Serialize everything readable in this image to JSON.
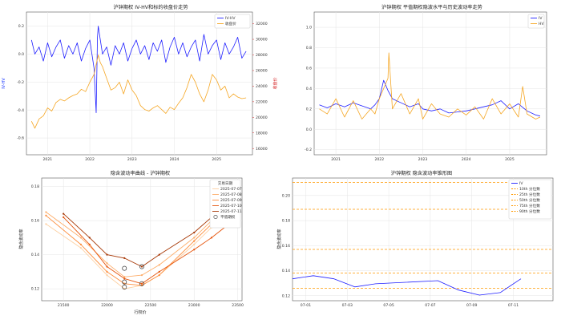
{
  "chart_data": [
    {
      "id": "p1",
      "type": "line",
      "title": "沪锌期权 IV-HV和标的收盘价走势",
      "ylabel": "IV-HV",
      "y2label": "收盘价",
      "ylabel_color": "#1f3cff",
      "y2label_color": "#d62728",
      "xlim": [
        2020.5,
        2025.85
      ],
      "ylim": [
        -0.72,
        0.3
      ],
      "y2lim": [
        15200,
        33500
      ],
      "xticks": [
        2021,
        2022,
        2023,
        2024,
        2025
      ],
      "xtick_labels": [
        "2021",
        "2022",
        "2023",
        "2024",
        "2025"
      ],
      "yticks": [
        -0.6,
        -0.4,
        -0.2,
        0.0,
        0.2
      ],
      "ytick_labels": [
        "-0.6",
        "-0.4",
        "-0.2",
        "0.0",
        "0.2"
      ],
      "y2ticks": [
        16000,
        18000,
        20000,
        22000,
        24000,
        26000,
        28000,
        30000,
        32000
      ],
      "y2tick_labels": [
        "16000",
        "18000",
        "20000",
        "22000",
        "24000",
        "26000",
        "28000",
        "30000",
        "32000"
      ],
      "grid": true,
      "legend": "top-right",
      "series": [
        {
          "name": "IV-HV",
          "axis": "left",
          "color": "#1f1fff",
          "x": [
            2020.62,
            2020.7,
            2020.8,
            2020.9,
            2021.0,
            2021.1,
            2021.2,
            2021.3,
            2021.4,
            2021.5,
            2021.6,
            2021.7,
            2021.8,
            2021.9,
            2022.0,
            2022.1,
            2022.15,
            2022.18,
            2022.2,
            2022.25,
            2022.3,
            2022.4,
            2022.5,
            2022.6,
            2022.7,
            2022.8,
            2022.9,
            2023.0,
            2023.1,
            2023.2,
            2023.3,
            2023.4,
            2023.5,
            2023.6,
            2023.7,
            2023.8,
            2023.9,
            2024.0,
            2024.1,
            2024.2,
            2024.3,
            2024.4,
            2024.5,
            2024.6,
            2024.7,
            2024.8,
            2024.9,
            2025.0,
            2025.1,
            2025.2,
            2025.3,
            2025.4,
            2025.5,
            2025.6,
            2025.7
          ],
          "y": [
            0.1,
            0.0,
            0.05,
            -0.05,
            0.08,
            -0.02,
            0.05,
            0.1,
            -0.03,
            0.06,
            0.0,
            0.08,
            -0.05,
            0.04,
            0.1,
            -0.1,
            -0.42,
            0.12,
            0.2,
            0.1,
            0.0,
            0.05,
            -0.08,
            0.06,
            0.0,
            0.08,
            -0.05,
            0.04,
            0.1,
            0.0,
            0.06,
            -0.04,
            0.08,
            0.02,
            0.1,
            -0.06,
            0.05,
            0.12,
            0.0,
            0.08,
            -0.02,
            0.05,
            0.1,
            -0.05,
            0.14,
            0.0,
            0.06,
            0.1,
            -0.04,
            0.08,
            0.0,
            0.05,
            0.12,
            -0.03,
            0.02
          ]
        },
        {
          "name": "收盘价",
          "axis": "right",
          "color": "#f5a623",
          "x": [
            2020.62,
            2020.7,
            2020.8,
            2020.9,
            2021.0,
            2021.1,
            2021.2,
            2021.3,
            2021.4,
            2021.5,
            2021.6,
            2021.7,
            2021.8,
            2021.9,
            2022.0,
            2022.1,
            2022.2,
            2022.25,
            2022.3,
            2022.4,
            2022.5,
            2022.6,
            2022.7,
            2022.8,
            2022.9,
            2023.0,
            2023.1,
            2023.2,
            2023.3,
            2023.4,
            2023.5,
            2023.6,
            2023.7,
            2023.8,
            2023.9,
            2024.0,
            2024.1,
            2024.2,
            2024.3,
            2024.4,
            2024.5,
            2024.6,
            2024.7,
            2024.8,
            2024.9,
            2025.0,
            2025.1,
            2025.2,
            2025.3,
            2025.4,
            2025.5,
            2025.6,
            2025.7
          ],
          "y": [
            19500,
            18600,
            19800,
            20200,
            21200,
            20800,
            21900,
            22300,
            22100,
            22500,
            22800,
            23000,
            23600,
            23300,
            24500,
            25500,
            28000,
            27000,
            26500,
            25000,
            23500,
            23800,
            24500,
            23000,
            24800,
            23500,
            22800,
            21500,
            21000,
            20800,
            21200,
            21500,
            21000,
            20500,
            21300,
            21000,
            21800,
            22500,
            23800,
            25500,
            24500,
            23000,
            22000,
            23500,
            25500,
            24800,
            23500,
            24000,
            22500,
            23000,
            22600,
            22400,
            22500
          ]
        }
      ]
    },
    {
      "id": "p2",
      "type": "line",
      "title": "沪锌期权 平值期权隐波水平与历史波动率走势",
      "xlim": [
        2020.5,
        2025.85
      ],
      "ylim": [
        -0.25,
        1.15
      ],
      "xticks": [
        2021,
        2022,
        2023,
        2024,
        2025
      ],
      "xtick_labels": [
        "2021",
        "2022",
        "2023",
        "2024",
        "2025"
      ],
      "yticks": [
        -0.2,
        0.0,
        0.2,
        0.4,
        0.6,
        0.8,
        1.0
      ],
      "ytick_labels": [
        "-0.2",
        "0.0",
        "0.2",
        "0.4",
        "0.6",
        "0.8",
        "1.0"
      ],
      "grid": true,
      "legend": "top-right",
      "series": [
        {
          "name": "IV",
          "color": "#1f1fff",
          "x": [
            2020.62,
            2020.8,
            2021.0,
            2021.2,
            2021.4,
            2021.6,
            2021.8,
            2021.9,
            2022.0,
            2022.1,
            2022.2,
            2022.3,
            2022.5,
            2022.7,
            2022.9,
            2023.0,
            2023.2,
            2023.4,
            2023.6,
            2023.8,
            2024.0,
            2024.2,
            2024.4,
            2024.6,
            2024.8,
            2025.0,
            2025.2,
            2025.4,
            2025.6,
            2025.7
          ],
          "y": [
            0.24,
            0.21,
            0.25,
            0.22,
            0.26,
            0.23,
            0.2,
            0.24,
            0.3,
            0.48,
            0.38,
            0.3,
            0.26,
            0.22,
            0.25,
            0.2,
            0.18,
            0.2,
            0.16,
            0.17,
            0.18,
            0.2,
            0.22,
            0.24,
            0.28,
            0.2,
            0.25,
            0.18,
            0.14,
            0.13
          ]
        },
        {
          "name": "HV",
          "color": "#f5a623",
          "x": [
            2020.62,
            2020.8,
            2021.0,
            2021.2,
            2021.4,
            2021.6,
            2021.8,
            2021.9,
            2022.0,
            2022.1,
            2022.2,
            2022.22,
            2022.3,
            2022.5,
            2022.7,
            2022.9,
            2023.0,
            2023.2,
            2023.4,
            2023.6,
            2023.8,
            2024.0,
            2024.2,
            2024.4,
            2024.6,
            2024.8,
            2025.0,
            2025.2,
            2025.3,
            2025.4,
            2025.6,
            2025.7
          ],
          "y": [
            0.2,
            0.15,
            0.3,
            0.12,
            0.28,
            0.1,
            0.2,
            0.15,
            0.3,
            0.4,
            0.5,
            0.75,
            0.2,
            0.35,
            0.15,
            0.3,
            0.1,
            0.25,
            0.15,
            0.12,
            0.2,
            0.14,
            0.22,
            0.1,
            0.3,
            0.15,
            0.25,
            0.12,
            0.42,
            0.15,
            0.1,
            0.12
          ]
        }
      ]
    },
    {
      "id": "p3",
      "type": "line",
      "title": "隐含波动率曲线 - 沪锌期权",
      "xlabel": "行权价",
      "ylabel": "隐含波动率",
      "xlim": [
        21250,
        23550
      ],
      "ylim": [
        0.113,
        0.185
      ],
      "xticks": [
        21500,
        22000,
        22500,
        23000,
        23500
      ],
      "xtick_labels": [
        "21500",
        "22000",
        "22500",
        "23000",
        "23500"
      ],
      "yticks": [
        0.12,
        0.14,
        0.16,
        0.18
      ],
      "ytick_labels": [
        "0.12",
        "0.14",
        "0.16",
        "0.18"
      ],
      "grid": true,
      "legend": "top-right",
      "legend_title": "交易日期",
      "atm_label": "平值期权",
      "series": [
        {
          "name": "2025-07-07",
          "color": "#fdd0a2",
          "x": [
            21300,
            21700,
            22000,
            22200,
            22400,
            22600,
            23000,
            23200
          ],
          "y": [
            0.158,
            0.144,
            0.128,
            0.12,
            0.122,
            0.128,
            0.146,
            0.156
          ]
        },
        {
          "name": "2025-07-08",
          "color": "#fdae6b",
          "x": [
            21300,
            21700,
            22000,
            22200,
            22400,
            22600,
            23000,
            23200
          ],
          "y": [
            0.165,
            0.15,
            0.135,
            0.127,
            0.128,
            0.134,
            0.15,
            0.16
          ]
        },
        {
          "name": "2025-07-09",
          "color": "#fd8d3c",
          "x": [
            21300,
            21700,
            22000,
            22200,
            22400,
            22600,
            23000,
            23200
          ],
          "y": [
            0.163,
            0.146,
            0.13,
            0.123,
            0.122,
            0.128,
            0.148,
            0.158
          ]
        },
        {
          "name": "2025-07-10",
          "color": "#e6550d",
          "x": [
            21500,
            21800,
            22000,
            22200,
            22400,
            22600,
            23000,
            23200,
            23450
          ],
          "y": [
            0.162,
            0.146,
            0.133,
            0.126,
            0.123,
            0.13,
            0.143,
            0.15,
            0.16
          ]
        },
        {
          "name": "2025-07-11",
          "color": "#a63603",
          "x": [
            21500,
            21800,
            22000,
            22200,
            22400,
            22600,
            23000,
            23200,
            23450
          ],
          "y": [
            0.164,
            0.15,
            0.14,
            0.138,
            0.133,
            0.14,
            0.153,
            0.162,
            0.173
          ]
        }
      ],
      "atm_points": [
        {
          "x": 22200,
          "y": 0.132
        },
        {
          "x": 22200,
          "y": 0.124
        },
        {
          "x": 22200,
          "y": 0.121
        },
        {
          "x": 22400,
          "y": 0.133
        },
        {
          "x": 22400,
          "y": 0.123
        }
      ]
    },
    {
      "id": "p4",
      "type": "line",
      "title": "沪锌期权 隐含波动率锥形图",
      "ylabel": "隐含波动率",
      "xlim": [
        0,
        6.9
      ],
      "ylim": [
        0.116,
        0.214
      ],
      "xticks": [
        0.35,
        1.45,
        2.55,
        3.65,
        4.75,
        5.85
      ],
      "xtick_labels": [
        "07-01",
        "07-03",
        "07-05",
        "07-07",
        "07-09",
        "07-11"
      ],
      "yticks": [
        0.12,
        0.14,
        0.16,
        0.18,
        0.2
      ],
      "ytick_labels": [
        "0.12",
        "0.14",
        "0.16",
        "0.18",
        "0.20"
      ],
      "grid": true,
      "legend": "top-right",
      "series": [
        {
          "name": "IV",
          "color": "#1f1fff",
          "x": [
            0.0,
            0.55,
            1.1,
            1.65,
            2.2,
            3.85,
            4.4,
            4.95,
            5.5,
            6.05
          ],
          "y": [
            0.1335,
            0.136,
            0.1335,
            0.127,
            0.1295,
            0.132,
            0.1245,
            0.1205,
            0.1225,
            0.1335
          ]
        }
      ],
      "quantiles": [
        {
          "name": "10th 分位数",
          "value": 0.126,
          "color": "#ff9900"
        },
        {
          "name": "25th 分位数",
          "value": 0.138,
          "color": "#ff9900"
        },
        {
          "name": "50th 分位数",
          "value": 0.157,
          "color": "#ff9900"
        },
        {
          "name": "75th 分位数",
          "value": 0.189,
          "color": "#ff9900"
        },
        {
          "name": "90th 分位数",
          "value": 0.2105,
          "color": "#ff9900"
        }
      ]
    }
  ]
}
